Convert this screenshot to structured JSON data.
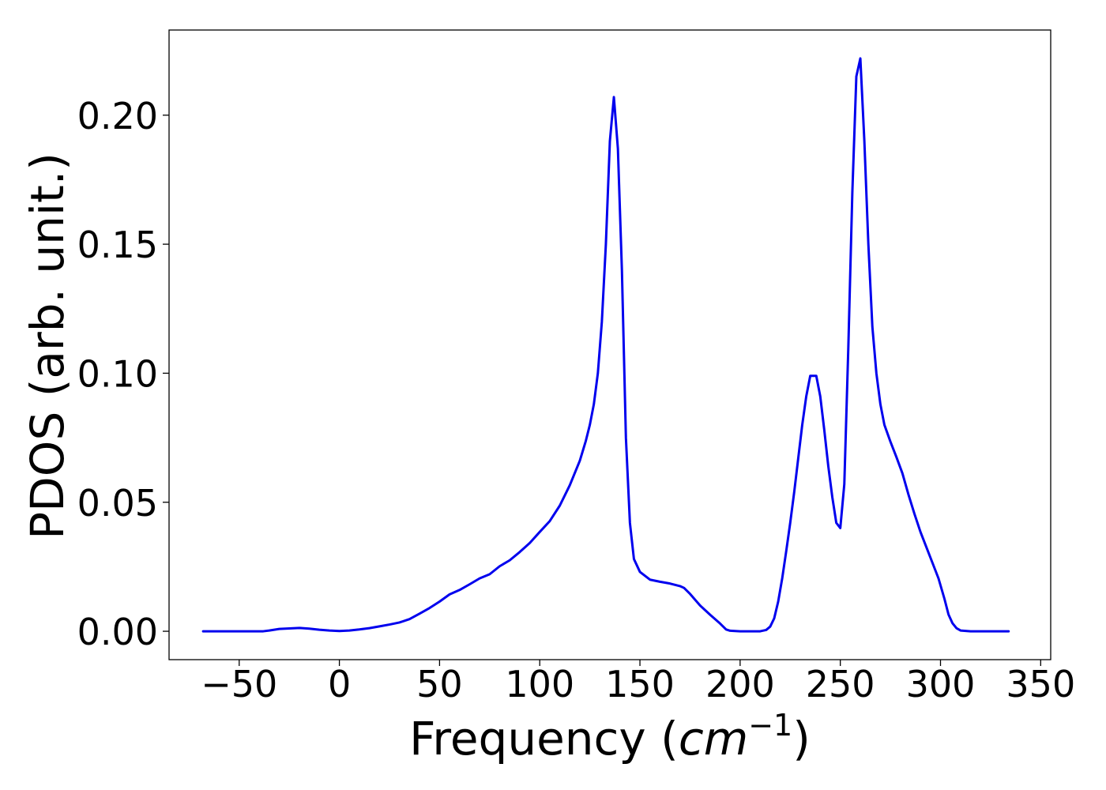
{
  "chart_data": {
    "type": "line",
    "title": "",
    "xlabel": {
      "prefix": "Frequency (",
      "unit": "cm",
      "exponent": "−1",
      "suffix": ")"
    },
    "ylabel": "PDOS (arb. unit.)",
    "xlim": [
      -85,
      355
    ],
    "ylim": [
      -0.011,
      0.233
    ],
    "xticks": [
      -50,
      0,
      50,
      100,
      150,
      200,
      250,
      300,
      350
    ],
    "xtick_labels": [
      "−50",
      "0",
      "50",
      "100",
      "150",
      "200",
      "250",
      "300",
      "350"
    ],
    "yticks": [
      0.0,
      0.05,
      0.1,
      0.15,
      0.2
    ],
    "ytick_labels": [
      "0.00",
      "0.05",
      "0.10",
      "0.15",
      "0.20"
    ],
    "grid": false,
    "legend": "none",
    "series": [
      {
        "color": "#0000ee",
        "x": [
          -68,
          -40,
          -38,
          -35,
          -30,
          -25,
          -20,
          -15,
          -10,
          -5,
          0,
          5,
          10,
          15,
          20,
          25,
          30,
          35,
          40,
          45,
          50,
          55,
          60,
          65,
          70,
          75,
          80,
          85,
          90,
          95,
          100,
          105,
          110,
          115,
          120,
          123,
          125,
          127,
          129,
          131,
          133,
          135,
          137,
          139,
          141,
          143,
          145,
          147,
          150,
          155,
          160,
          165,
          170,
          172,
          175,
          180,
          185,
          190,
          193,
          195,
          200,
          205,
          210,
          213,
          215,
          217,
          219,
          221,
          223,
          225,
          227,
          229,
          231,
          233,
          235,
          237,
          238,
          240,
          242,
          244,
          246,
          248,
          250,
          252,
          254,
          256,
          258,
          260,
          262,
          264,
          266,
          268,
          270,
          272,
          275,
          278,
          281,
          284,
          287,
          290,
          293,
          296,
          299,
          302,
          304,
          306,
          308,
          310,
          315,
          320,
          325,
          330,
          334
        ],
        "y": [
          0,
          0,
          0,
          0.0003,
          0.0009,
          0.0011,
          0.0013,
          0.001,
          0.0006,
          0.0003,
          0.0001,
          0.0003,
          0.0007,
          0.0012,
          0.0019,
          0.0026,
          0.0034,
          0.0047,
          0.0068,
          0.009,
          0.0115,
          0.0143,
          0.016,
          0.0182,
          0.0205,
          0.0221,
          0.0252,
          0.0275,
          0.0307,
          0.0342,
          0.0385,
          0.0427,
          0.0487,
          0.0566,
          0.0661,
          0.0738,
          0.08,
          0.088,
          0.1,
          0.12,
          0.15,
          0.19,
          0.207,
          0.187,
          0.14,
          0.075,
          0.042,
          0.028,
          0.023,
          0.02,
          0.0192,
          0.0185,
          0.0175,
          0.0168,
          0.0145,
          0.01,
          0.0064,
          0.003,
          0.0007,
          0.0002,
          0,
          0,
          0,
          0.0005,
          0.0018,
          0.005,
          0.0115,
          0.0205,
          0.031,
          0.042,
          0.054,
          0.067,
          0.08,
          0.091,
          0.099,
          0.099,
          0.099,
          0.091,
          0.078,
          0.064,
          0.052,
          0.042,
          0.04,
          0.057,
          0.11,
          0.17,
          0.215,
          0.222,
          0.19,
          0.15,
          0.118,
          0.1,
          0.088,
          0.08,
          0.0735,
          0.0675,
          0.0612,
          0.053,
          0.0455,
          0.0385,
          0.0325,
          0.0265,
          0.0205,
          0.0125,
          0.0065,
          0.0031,
          0.0012,
          0.0003,
          0,
          0,
          0,
          0,
          0
        ]
      }
    ]
  }
}
